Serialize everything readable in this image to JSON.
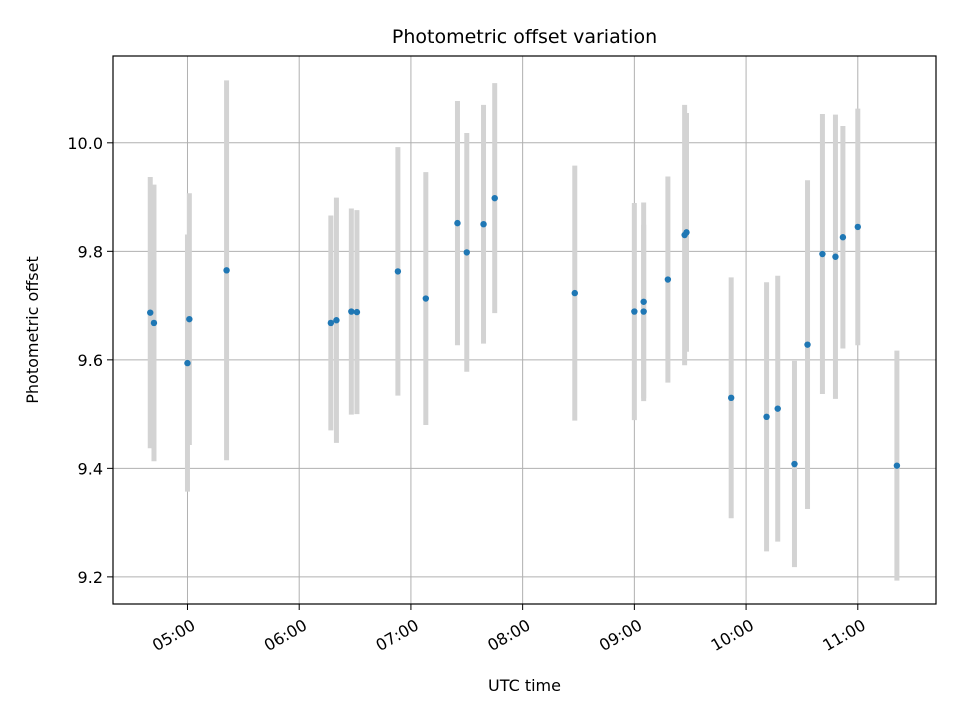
{
  "chart_data": {
    "type": "scatter",
    "title": "Photometric offset variation",
    "xlabel": "UTC time",
    "ylabel": "Photometric offset",
    "xlim": [
      "04:20",
      "11:42"
    ],
    "ylim": [
      9.15,
      10.16
    ],
    "x_ticks": [
      "05:00",
      "06:00",
      "07:00",
      "08:00",
      "09:00",
      "10:00",
      "11:00"
    ],
    "y_ticks": [
      "9.2",
      "9.4",
      "9.6",
      "9.8",
      "10.0"
    ],
    "grid": true,
    "colors": {
      "point": "#1f77b4",
      "errorbar": "#d3d3d3",
      "grid": "#b0b0b0"
    },
    "points": [
      {
        "x": "04:40",
        "y": 9.687,
        "yerr": 0.25
      },
      {
        "x": "04:42",
        "y": 9.668,
        "yerr": 0.255
      },
      {
        "x": "05:00",
        "y": 9.594,
        "yerr": 0.237
      },
      {
        "x": "05:01",
        "y": 9.675,
        "yerr": 0.232
      },
      {
        "x": "05:21",
        "y": 9.765,
        "yerr": 0.35
      },
      {
        "x": "06:17",
        "y": 9.668,
        "yerr": 0.198
      },
      {
        "x": "06:20",
        "y": 9.673,
        "yerr": 0.226
      },
      {
        "x": "06:28",
        "y": 9.689,
        "yerr": 0.19
      },
      {
        "x": "06:31",
        "y": 9.688,
        "yerr": 0.188
      },
      {
        "x": "06:53",
        "y": 9.763,
        "yerr": 0.229
      },
      {
        "x": "07:08",
        "y": 9.713,
        "yerr": 0.233
      },
      {
        "x": "07:25",
        "y": 9.852,
        "yerr": 0.225
      },
      {
        "x": "07:30",
        "y": 9.798,
        "yerr": 0.22
      },
      {
        "x": "07:39",
        "y": 9.85,
        "yerr": 0.22
      },
      {
        "x": "07:45",
        "y": 9.898,
        "yerr": 0.212
      },
      {
        "x": "08:28",
        "y": 9.723,
        "yerr": 0.235
      },
      {
        "x": "09:00",
        "y": 9.689,
        "yerr": 0.2
      },
      {
        "x": "09:05",
        "y": 9.707,
        "yerr": 0.183
      },
      {
        "x": "09:05",
        "y": 9.689,
        "yerr": 0.16
      },
      {
        "x": "09:18",
        "y": 9.748,
        "yerr": 0.19
      },
      {
        "x": "09:27",
        "y": 9.83,
        "yerr": 0.24
      },
      {
        "x": "09:28",
        "y": 9.835,
        "yerr": 0.22
      },
      {
        "x": "09:52",
        "y": 9.53,
        "yerr": 0.222
      },
      {
        "x": "10:11",
        "y": 9.495,
        "yerr": 0.248
      },
      {
        "x": "10:17",
        "y": 9.51,
        "yerr": 0.245
      },
      {
        "x": "10:26",
        "y": 9.408,
        "yerr": 0.19
      },
      {
        "x": "10:33",
        "y": 9.628,
        "yerr": 0.303
      },
      {
        "x": "10:41",
        "y": 9.795,
        "yerr": 0.258
      },
      {
        "x": "10:48",
        "y": 9.79,
        "yerr": 0.262
      },
      {
        "x": "10:52",
        "y": 9.826,
        "yerr": 0.205
      },
      {
        "x": "11:00",
        "y": 9.845,
        "yerr": 0.218
      },
      {
        "x": "11:21",
        "y": 9.405,
        "yerr": 0.212
      }
    ]
  }
}
